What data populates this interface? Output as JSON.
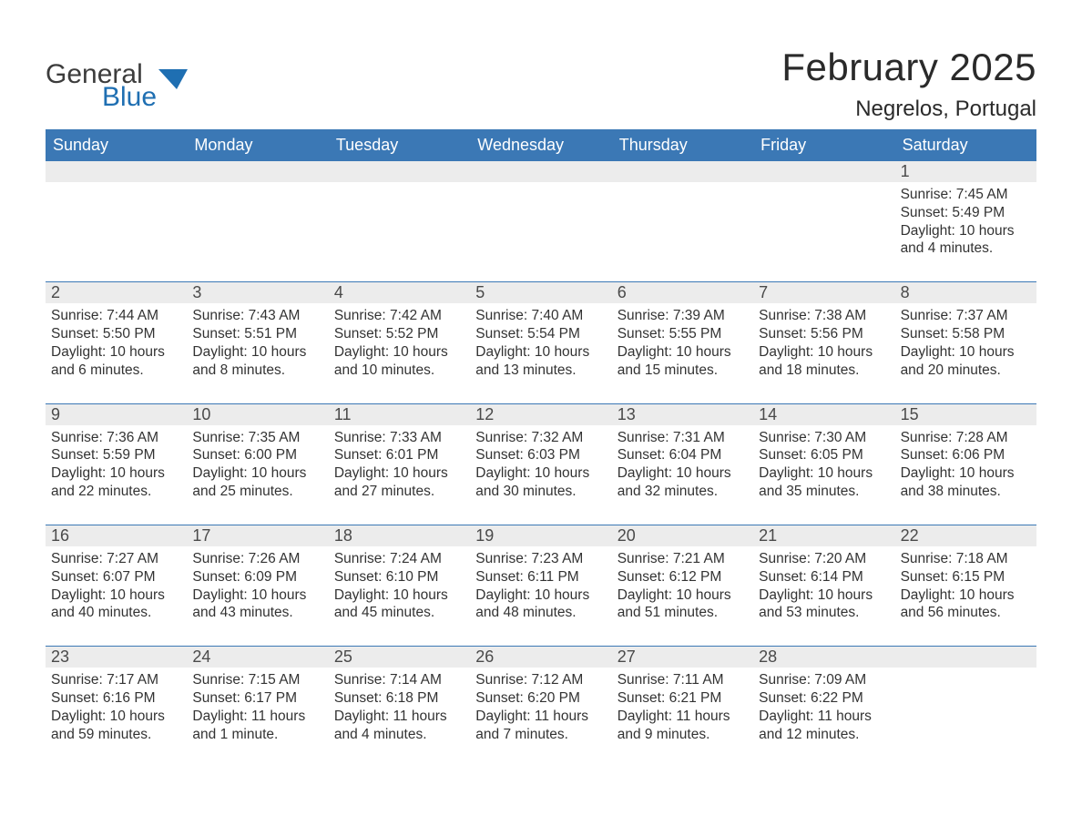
{
  "brand": {
    "general": "General",
    "blue": "Blue"
  },
  "title": "February 2025",
  "location": "Negrelos, Portugal",
  "colors": {
    "header_bg": "#3b78b5",
    "header_text": "#ffffff",
    "daynum_bg": "#ececec",
    "rule": "#3b78b5",
    "text": "#333333",
    "logo_blue": "#1f6fb2",
    "logo_gray": "#3c3c3c",
    "page_bg": "#ffffff"
  },
  "days_of_week": [
    "Sunday",
    "Monday",
    "Tuesday",
    "Wednesday",
    "Thursday",
    "Friday",
    "Saturday"
  ],
  "weeks": [
    [
      null,
      null,
      null,
      null,
      null,
      null,
      {
        "n": "1",
        "sunrise": "Sunrise: 7:45 AM",
        "sunset": "Sunset: 5:49 PM",
        "day1": "Daylight: 10 hours",
        "day2": "and 4 minutes."
      }
    ],
    [
      {
        "n": "2",
        "sunrise": "Sunrise: 7:44 AM",
        "sunset": "Sunset: 5:50 PM",
        "day1": "Daylight: 10 hours",
        "day2": "and 6 minutes."
      },
      {
        "n": "3",
        "sunrise": "Sunrise: 7:43 AM",
        "sunset": "Sunset: 5:51 PM",
        "day1": "Daylight: 10 hours",
        "day2": "and 8 minutes."
      },
      {
        "n": "4",
        "sunrise": "Sunrise: 7:42 AM",
        "sunset": "Sunset: 5:52 PM",
        "day1": "Daylight: 10 hours",
        "day2": "and 10 minutes."
      },
      {
        "n": "5",
        "sunrise": "Sunrise: 7:40 AM",
        "sunset": "Sunset: 5:54 PM",
        "day1": "Daylight: 10 hours",
        "day2": "and 13 minutes."
      },
      {
        "n": "6",
        "sunrise": "Sunrise: 7:39 AM",
        "sunset": "Sunset: 5:55 PM",
        "day1": "Daylight: 10 hours",
        "day2": "and 15 minutes."
      },
      {
        "n": "7",
        "sunrise": "Sunrise: 7:38 AM",
        "sunset": "Sunset: 5:56 PM",
        "day1": "Daylight: 10 hours",
        "day2": "and 18 minutes."
      },
      {
        "n": "8",
        "sunrise": "Sunrise: 7:37 AM",
        "sunset": "Sunset: 5:58 PM",
        "day1": "Daylight: 10 hours",
        "day2": "and 20 minutes."
      }
    ],
    [
      {
        "n": "9",
        "sunrise": "Sunrise: 7:36 AM",
        "sunset": "Sunset: 5:59 PM",
        "day1": "Daylight: 10 hours",
        "day2": "and 22 minutes."
      },
      {
        "n": "10",
        "sunrise": "Sunrise: 7:35 AM",
        "sunset": "Sunset: 6:00 PM",
        "day1": "Daylight: 10 hours",
        "day2": "and 25 minutes."
      },
      {
        "n": "11",
        "sunrise": "Sunrise: 7:33 AM",
        "sunset": "Sunset: 6:01 PM",
        "day1": "Daylight: 10 hours",
        "day2": "and 27 minutes."
      },
      {
        "n": "12",
        "sunrise": "Sunrise: 7:32 AM",
        "sunset": "Sunset: 6:03 PM",
        "day1": "Daylight: 10 hours",
        "day2": "and 30 minutes."
      },
      {
        "n": "13",
        "sunrise": "Sunrise: 7:31 AM",
        "sunset": "Sunset: 6:04 PM",
        "day1": "Daylight: 10 hours",
        "day2": "and 32 minutes."
      },
      {
        "n": "14",
        "sunrise": "Sunrise: 7:30 AM",
        "sunset": "Sunset: 6:05 PM",
        "day1": "Daylight: 10 hours",
        "day2": "and 35 minutes."
      },
      {
        "n": "15",
        "sunrise": "Sunrise: 7:28 AM",
        "sunset": "Sunset: 6:06 PM",
        "day1": "Daylight: 10 hours",
        "day2": "and 38 minutes."
      }
    ],
    [
      {
        "n": "16",
        "sunrise": "Sunrise: 7:27 AM",
        "sunset": "Sunset: 6:07 PM",
        "day1": "Daylight: 10 hours",
        "day2": "and 40 minutes."
      },
      {
        "n": "17",
        "sunrise": "Sunrise: 7:26 AM",
        "sunset": "Sunset: 6:09 PM",
        "day1": "Daylight: 10 hours",
        "day2": "and 43 minutes."
      },
      {
        "n": "18",
        "sunrise": "Sunrise: 7:24 AM",
        "sunset": "Sunset: 6:10 PM",
        "day1": "Daylight: 10 hours",
        "day2": "and 45 minutes."
      },
      {
        "n": "19",
        "sunrise": "Sunrise: 7:23 AM",
        "sunset": "Sunset: 6:11 PM",
        "day1": "Daylight: 10 hours",
        "day2": "and 48 minutes."
      },
      {
        "n": "20",
        "sunrise": "Sunrise: 7:21 AM",
        "sunset": "Sunset: 6:12 PM",
        "day1": "Daylight: 10 hours",
        "day2": "and 51 minutes."
      },
      {
        "n": "21",
        "sunrise": "Sunrise: 7:20 AM",
        "sunset": "Sunset: 6:14 PM",
        "day1": "Daylight: 10 hours",
        "day2": "and 53 minutes."
      },
      {
        "n": "22",
        "sunrise": "Sunrise: 7:18 AM",
        "sunset": "Sunset: 6:15 PM",
        "day1": "Daylight: 10 hours",
        "day2": "and 56 minutes."
      }
    ],
    [
      {
        "n": "23",
        "sunrise": "Sunrise: 7:17 AM",
        "sunset": "Sunset: 6:16 PM",
        "day1": "Daylight: 10 hours",
        "day2": "and 59 minutes."
      },
      {
        "n": "24",
        "sunrise": "Sunrise: 7:15 AM",
        "sunset": "Sunset: 6:17 PM",
        "day1": "Daylight: 11 hours",
        "day2": "and 1 minute."
      },
      {
        "n": "25",
        "sunrise": "Sunrise: 7:14 AM",
        "sunset": "Sunset: 6:18 PM",
        "day1": "Daylight: 11 hours",
        "day2": "and 4 minutes."
      },
      {
        "n": "26",
        "sunrise": "Sunrise: 7:12 AM",
        "sunset": "Sunset: 6:20 PM",
        "day1": "Daylight: 11 hours",
        "day2": "and 7 minutes."
      },
      {
        "n": "27",
        "sunrise": "Sunrise: 7:11 AM",
        "sunset": "Sunset: 6:21 PM",
        "day1": "Daylight: 11 hours",
        "day2": "and 9 minutes."
      },
      {
        "n": "28",
        "sunrise": "Sunrise: 7:09 AM",
        "sunset": "Sunset: 6:22 PM",
        "day1": "Daylight: 11 hours",
        "day2": "and 12 minutes."
      },
      null
    ]
  ]
}
